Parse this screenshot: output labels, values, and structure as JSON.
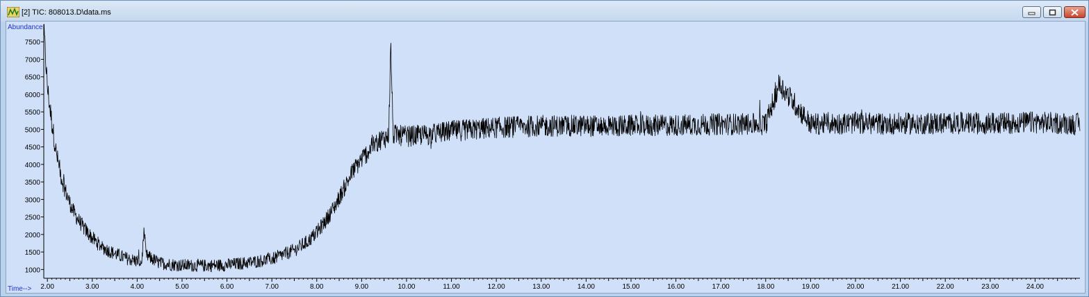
{
  "window": {
    "title": "[2] TIC: 808013.D\\data.ms",
    "controls": [
      "minimize-icon",
      "maximize-icon",
      "close-icon"
    ]
  },
  "colors": {
    "plot_bg": "#d0e0f8",
    "trace": "#000000",
    "axis_label": "#1f33c9"
  },
  "chart_data": {
    "type": "line",
    "title": "",
    "ylabel": "Abundance",
    "xlabel": "Time-->",
    "xlim": [
      1.92,
      25.0
    ],
    "ylim": [
      750,
      8000
    ],
    "grid": false,
    "x_ticks": [
      2,
      3,
      4,
      5,
      6,
      7,
      8,
      9,
      10,
      11,
      12,
      13,
      14,
      15,
      16,
      17,
      18,
      19,
      20,
      21,
      22,
      23,
      24
    ],
    "x_tick_labels": [
      "2.00",
      "3.00",
      "4.00",
      "5.00",
      "6.00",
      "7.00",
      "8.00",
      "9.00",
      "10.00",
      "11.00",
      "12.00",
      "13.00",
      "14.00",
      "15.00",
      "16.00",
      "17.00",
      "18.00",
      "19.00",
      "20.00",
      "21.00",
      "22.00",
      "23.00",
      "24.00"
    ],
    "y_ticks": [
      1000,
      1500,
      2000,
      2500,
      3000,
      3500,
      4000,
      4500,
      5000,
      5500,
      6000,
      6500,
      7000,
      7500
    ],
    "y_tick_labels": [
      "1000",
      "1500",
      "2000",
      "2500",
      "3000",
      "3500",
      "4000",
      "4500",
      "5000",
      "5500",
      "6000",
      "6500",
      "7000",
      "7500"
    ],
    "series": [
      {
        "x": [
          1.92,
          2.0,
          2.1,
          2.2,
          2.3,
          2.4,
          2.5,
          2.6,
          2.8,
          3.0,
          3.2,
          3.5,
          3.8,
          4.0,
          4.1,
          4.15,
          4.2,
          4.5,
          5.0,
          5.5,
          6.0,
          6.5,
          7.0,
          7.3,
          7.5,
          7.8,
          8.0,
          8.2,
          8.4,
          8.6,
          8.8,
          9.0,
          9.2,
          9.4,
          9.6,
          9.65,
          9.7,
          10.0,
          10.5,
          11.0,
          12.0,
          13.0,
          14.0,
          15.0,
          16.0,
          17.0,
          18.0,
          18.3,
          19.0,
          20.0,
          21.0,
          22.0,
          23.0,
          24.0,
          24.5,
          25.0
        ],
        "y": [
          7900,
          6200,
          5200,
          4300,
          3700,
          3250,
          2900,
          2600,
          2200,
          1900,
          1650,
          1450,
          1300,
          1250,
          1200,
          2000,
          1400,
          1180,
          1120,
          1110,
          1130,
          1200,
          1300,
          1450,
          1550,
          1800,
          2050,
          2400,
          2800,
          3300,
          3800,
          4150,
          4450,
          4700,
          4800,
          7400,
          4850,
          4800,
          4850,
          4950,
          5050,
          5100,
          5100,
          5100,
          5120,
          5150,
          5150,
          6300,
          5150,
          5180,
          5160,
          5180,
          5170,
          5200,
          5180,
          5150
        ]
      }
    ],
    "noise_amplitude": 330
  }
}
